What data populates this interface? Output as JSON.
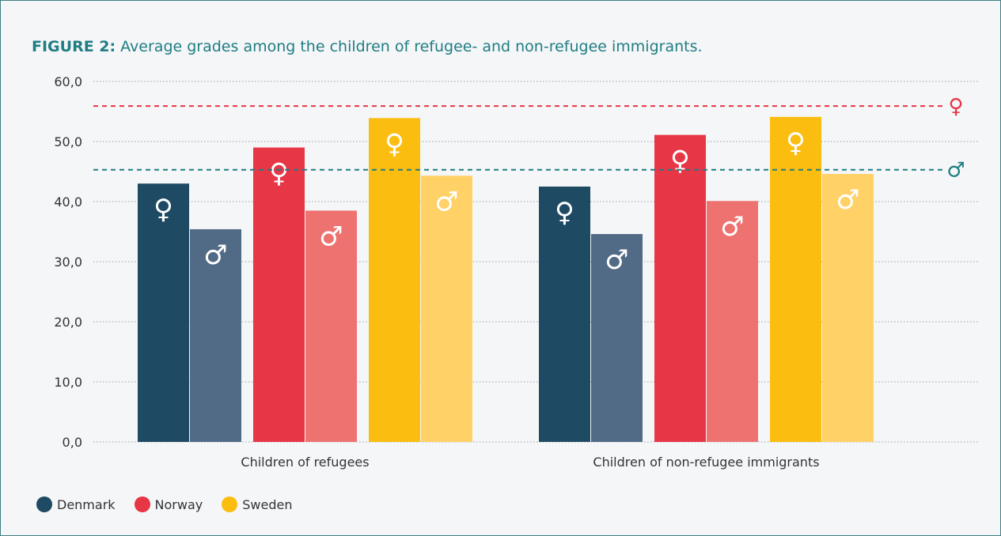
{
  "figure": {
    "label": "FIGURE 2:",
    "title": "Average grades among the children of refugee- and non-refugee immigrants."
  },
  "chart_data": {
    "type": "bar",
    "categories": [
      "Children of refugees",
      "Children of non-refugee immigrants"
    ],
    "series": [
      {
        "name": "Denmark",
        "gender_symbol": "♀",
        "color": "#1e4a63",
        "values": [
          43.0,
          42.5
        ]
      },
      {
        "name": "Denmark",
        "gender_symbol": "♂",
        "color": "#516a85",
        "values": [
          35.4,
          34.6
        ]
      },
      {
        "name": "Norway",
        "gender_symbol": "♀",
        "color": "#e73645",
        "values": [
          49.0,
          51.1
        ]
      },
      {
        "name": "Norway",
        "gender_symbol": "♂",
        "color": "#ee7370",
        "values": [
          38.5,
          40.1
        ]
      },
      {
        "name": "Sweden",
        "gender_symbol": "♀",
        "color": "#fbbd0f",
        "values": [
          53.9,
          54.1
        ]
      },
      {
        "name": "Sweden",
        "gender_symbol": "♂",
        "color": "#ffd166",
        "values": [
          44.3,
          44.6
        ]
      }
    ],
    "reference_lines": [
      {
        "symbol": "♀",
        "value": 55.9,
        "color": "#e73645"
      },
      {
        "symbol": "♂",
        "value": 45.3,
        "color": "#1f7d83"
      }
    ],
    "ylim": [
      0,
      60
    ],
    "yticks": [
      "0,0",
      "10,0",
      "20,0",
      "30,0",
      "40,0",
      "50,0",
      "60,0"
    ],
    "grid": true,
    "legend": [
      {
        "name": "Denmark",
        "color": "#1e4a63"
      },
      {
        "name": "Norway",
        "color": "#e73645"
      },
      {
        "name": "Sweden",
        "color": "#fbbd0f"
      }
    ],
    "legend_position": "bottom-left"
  }
}
